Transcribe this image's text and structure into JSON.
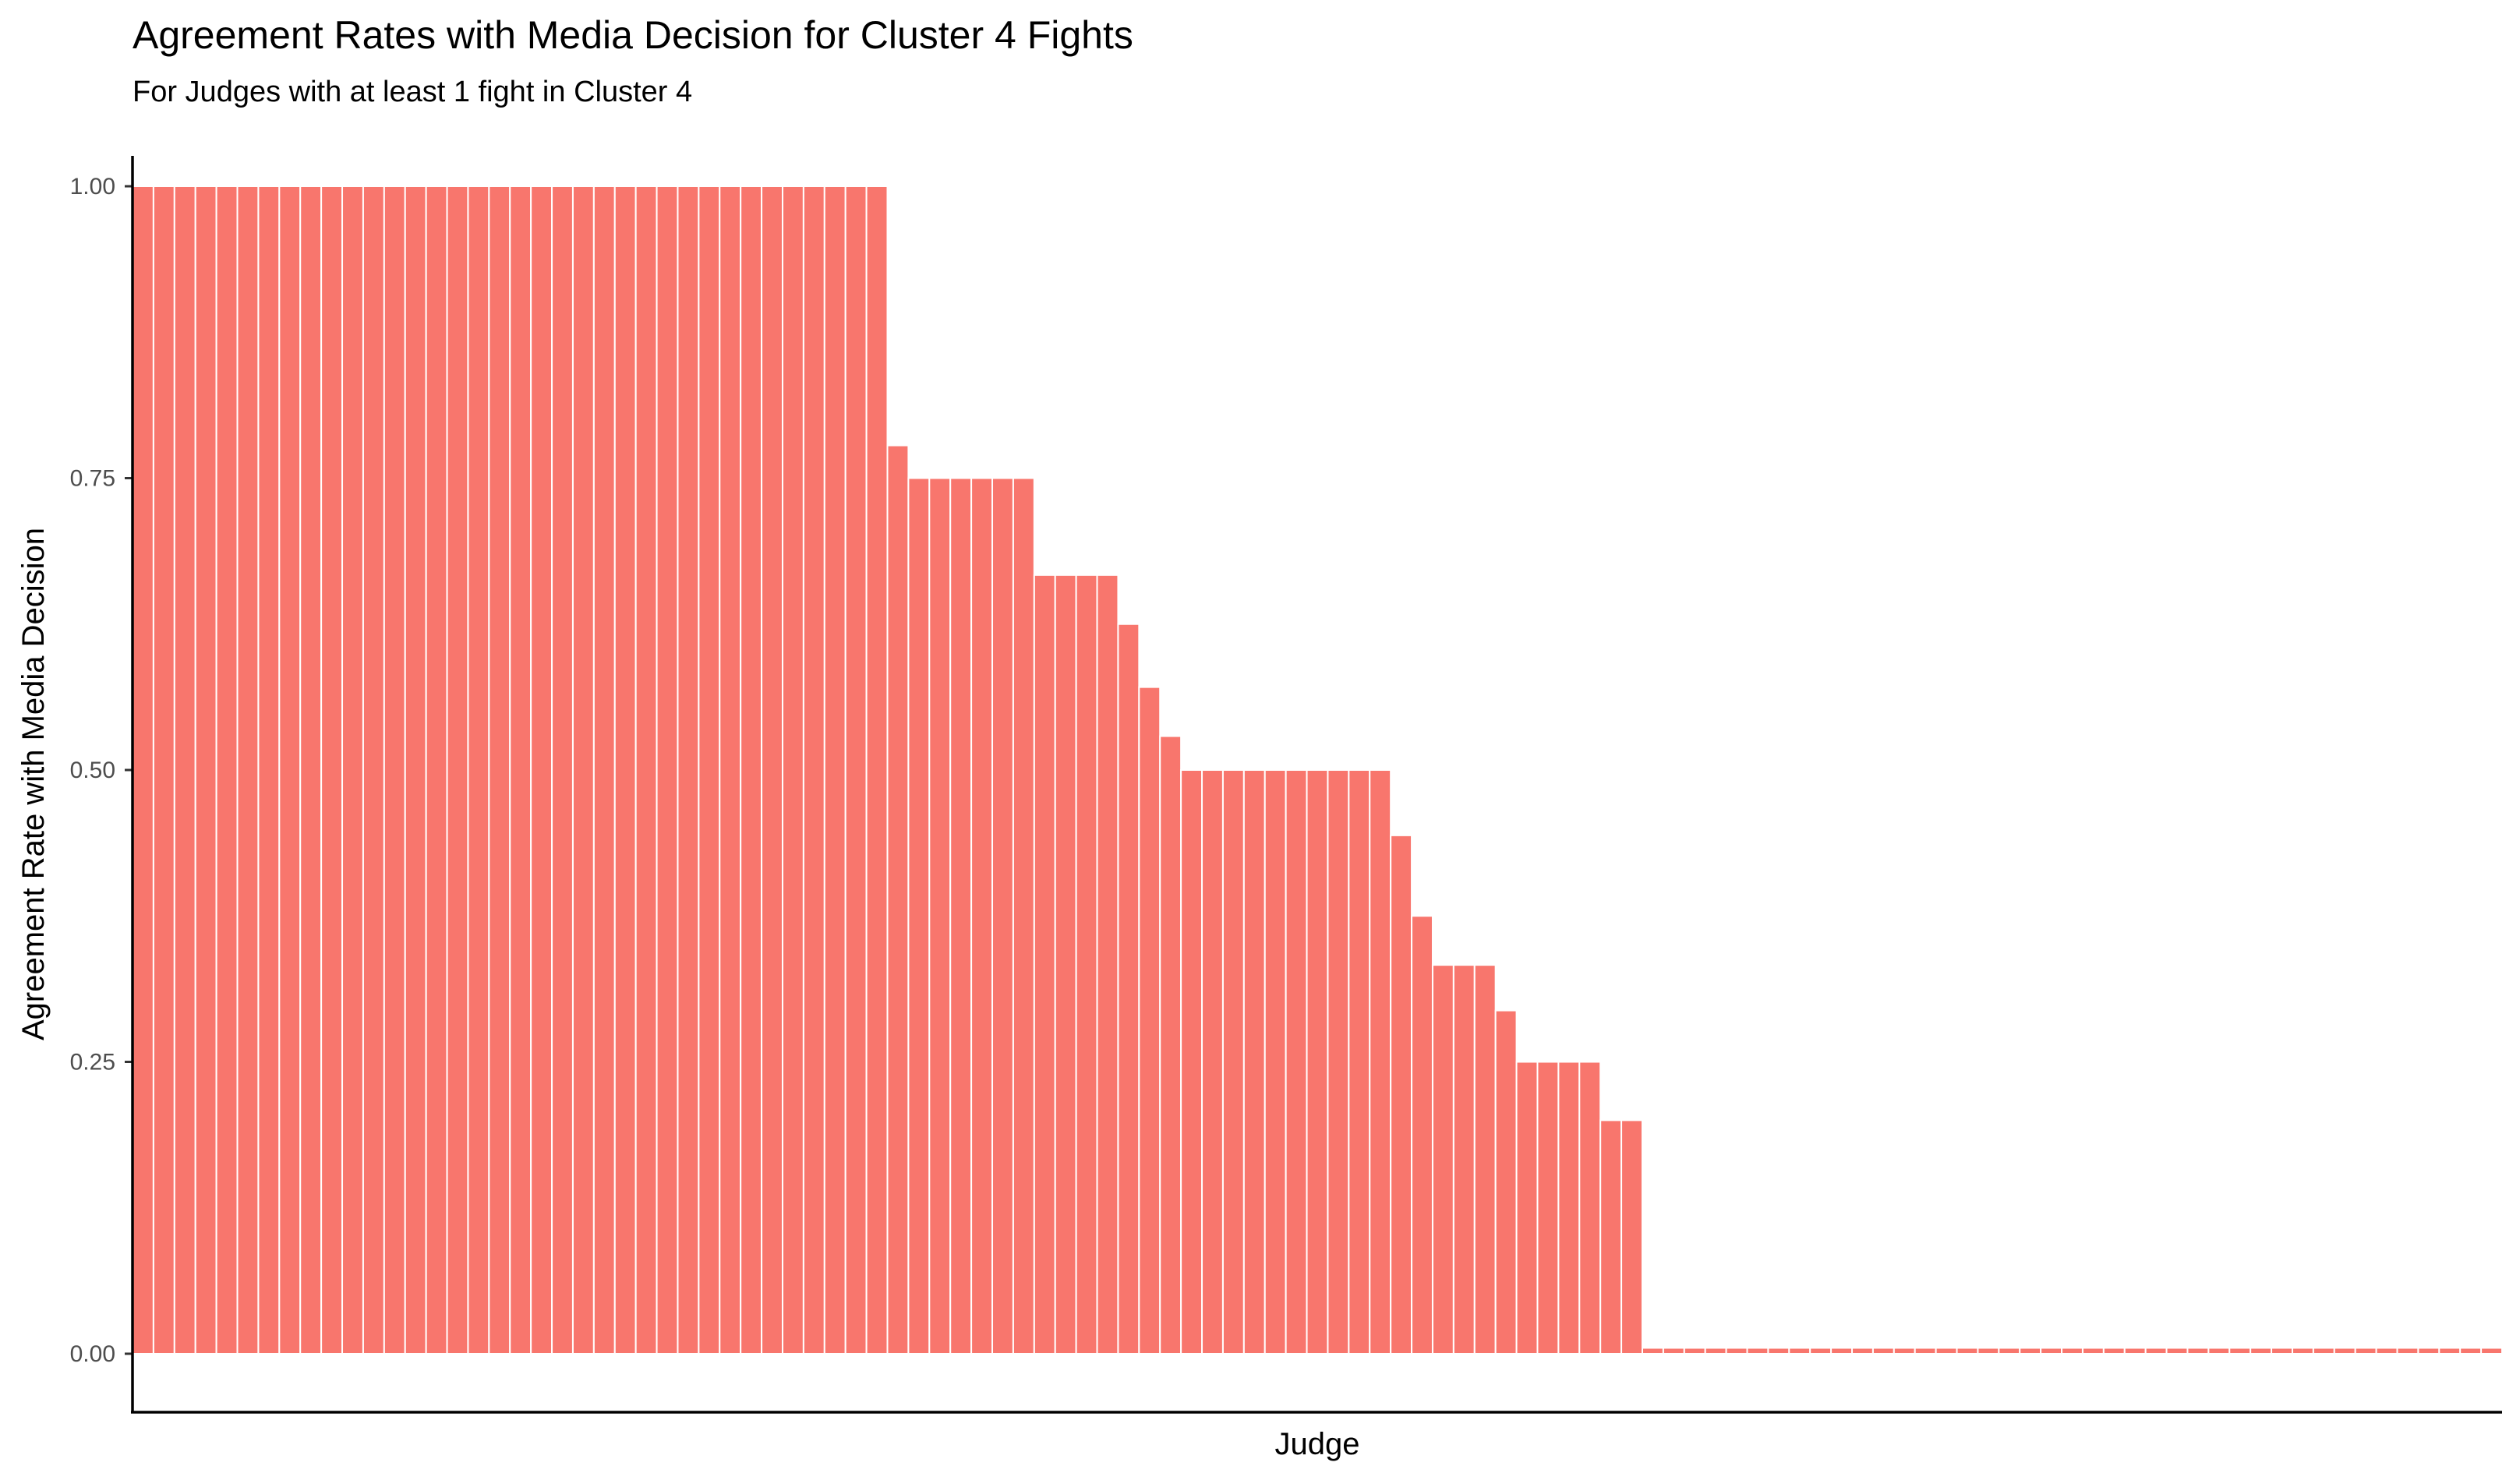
{
  "chart_data": {
    "type": "bar",
    "title": "Agreement Rates with Media Decision for Cluster 4 Fights",
    "subtitle": "For Judges with at least 1 fight in Cluster 4",
    "xlabel": "Judge",
    "ylabel": "Agreement Rate with Media Decision",
    "ylim": [
      0,
      1
    ],
    "y_ticks": [
      "0.00",
      "0.25",
      "0.50",
      "0.75",
      "1.00"
    ],
    "y_tick_values": [
      0,
      0.25,
      0.5,
      0.75,
      1.0
    ],
    "grid": false,
    "legend": "none",
    "bar_color": "#F8766D",
    "bar_outline": "#ffffff",
    "values": [
      1,
      1,
      1,
      1,
      1,
      1,
      1,
      1,
      1,
      1,
      1,
      1,
      1,
      1,
      1,
      1,
      1,
      1,
      1,
      1,
      1,
      1,
      1,
      1,
      1,
      1,
      1,
      1,
      1,
      1,
      1,
      1,
      1,
      1,
      1,
      1,
      0.778,
      0.75,
      0.75,
      0.75,
      0.75,
      0.75,
      0.75,
      0.667,
      0.667,
      0.667,
      0.667,
      0.625,
      0.571,
      0.529,
      0.5,
      0.5,
      0.5,
      0.5,
      0.5,
      0.5,
      0.5,
      0.5,
      0.5,
      0.5,
      0.444,
      0.375,
      0.333,
      0.333,
      0.333,
      0.294,
      0.25,
      0.25,
      0.25,
      0.25,
      0.2,
      0.2,
      0.005,
      0.005,
      0.005,
      0.005,
      0.005,
      0.005,
      0.005,
      0.005,
      0.005,
      0.005,
      0.005,
      0.005,
      0.005,
      0.005,
      0.005,
      0.005,
      0.005,
      0.005,
      0.005,
      0.005,
      0.005,
      0.005,
      0.005,
      0.005,
      0.005,
      0.005,
      0.005,
      0.005,
      0.005,
      0.005,
      0.005,
      0.005,
      0.005,
      0.005,
      0.005,
      0.005,
      0.005,
      0.005,
      0.005,
      0.005,
      0.005
    ]
  }
}
